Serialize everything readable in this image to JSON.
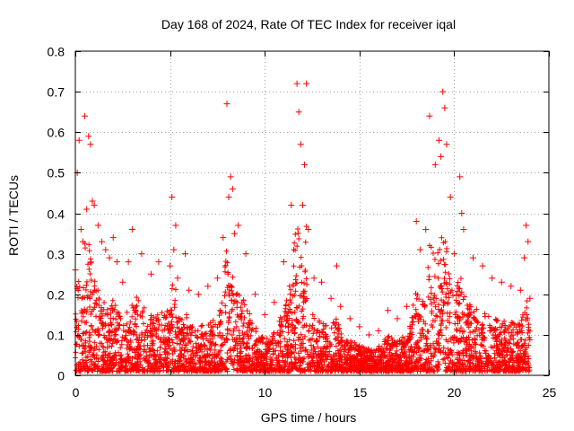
{
  "chart_data": {
    "type": "scatter",
    "title": "Day 168 of 2024, Rate Of TEC Index for receiver iqal",
    "xlabel": "GPS time / hours",
    "ylabel": "ROTI / TECUs",
    "xlim": [
      0,
      25
    ],
    "ylim": [
      0,
      0.8
    ],
    "x_ticks": [
      0,
      5,
      10,
      15,
      20,
      25
    ],
    "x_tick_labels": [
      "0",
      "5",
      "10",
      "15",
      "20",
      "25"
    ],
    "y_ticks": [
      0,
      0.1,
      0.2,
      0.3,
      0.4,
      0.5,
      0.6,
      0.7,
      0.8
    ],
    "y_tick_labels": [
      "0",
      "0.1",
      "0.2",
      "0.3",
      "0.4",
      "0.5",
      "0.6",
      "0.7",
      "0.8"
    ],
    "grid": true,
    "marker": "+",
    "series": [
      {
        "name": "ROTI",
        "color": "#ff0000",
        "x": [
          0.0,
          0.2,
          0.4,
          0.5,
          0.6,
          0.8,
          0.9,
          1.2,
          1.4,
          1.6,
          1.8,
          2.0,
          2.2,
          2.5,
          3.0,
          3.5,
          4.0,
          4.4,
          5.0,
          5.1,
          5.2,
          5.4,
          5.8,
          6.0,
          6.5,
          7.0,
          7.5,
          7.8,
          8.0,
          8.1,
          8.2,
          8.4,
          8.6,
          9.0,
          9.5,
          10.0,
          10.5,
          11.0,
          11.4,
          11.7,
          11.8,
          11.9,
          12.0,
          12.1,
          12.3,
          12.6,
          13.0,
          13.5,
          13.8,
          14.0,
          14.5,
          15.0,
          15.5,
          16.0,
          16.5,
          17.0,
          17.5,
          18.0,
          18.2,
          18.5,
          18.7,
          19.0,
          19.2,
          19.4,
          19.5,
          19.6,
          19.8,
          20.0,
          20.3,
          20.5,
          21.0,
          21.5,
          22.0,
          22.5,
          23.0,
          23.5,
          23.8,
          23.9,
          24.0,
          0.1,
          0.3,
          0.7,
          1.0,
          2.8,
          5.3,
          8.3,
          12.2,
          19.3,
          20.4,
          23.7
        ],
        "y": [
          0.26,
          0.58,
          0.33,
          0.64,
          0.41,
          0.57,
          0.43,
          0.37,
          0.33,
          0.31,
          0.29,
          0.34,
          0.28,
          0.23,
          0.36,
          0.3,
          0.25,
          0.28,
          0.27,
          0.44,
          0.31,
          0.24,
          0.3,
          0.21,
          0.2,
          0.22,
          0.24,
          0.34,
          0.67,
          0.44,
          0.49,
          0.35,
          0.37,
          0.3,
          0.2,
          0.15,
          0.18,
          0.28,
          0.42,
          0.72,
          0.65,
          0.57,
          0.42,
          0.52,
          0.36,
          0.24,
          0.23,
          0.19,
          0.27,
          0.17,
          0.14,
          0.12,
          0.1,
          0.11,
          0.16,
          0.14,
          0.17,
          0.38,
          0.31,
          0.36,
          0.64,
          0.52,
          0.58,
          0.7,
          0.66,
          0.57,
          0.44,
          0.3,
          0.49,
          0.36,
          0.29,
          0.27,
          0.24,
          0.23,
          0.22,
          0.21,
          0.37,
          0.33,
          0.19,
          0.5,
          0.36,
          0.59,
          0.42,
          0.28,
          0.37,
          0.46,
          0.72,
          0.54,
          0.4,
          0.29
        ]
      }
    ]
  }
}
